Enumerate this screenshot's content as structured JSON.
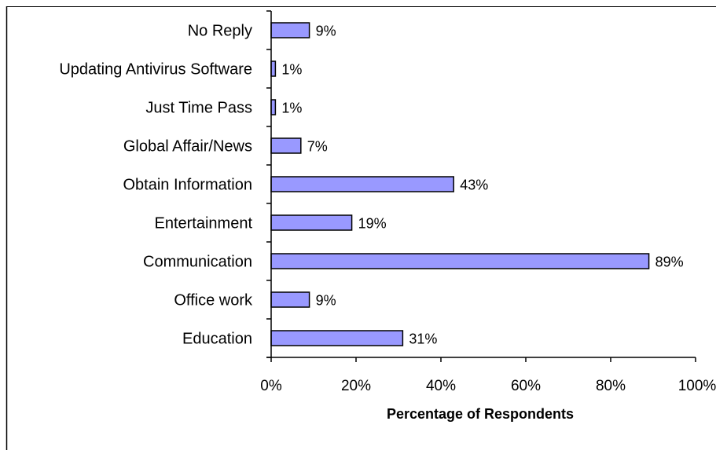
{
  "chart_data": {
    "type": "bar",
    "orientation": "horizontal",
    "title": "",
    "xlabel": "Percentage of Respondents",
    "ylabel": "",
    "categories": [
      "No Reply",
      "Updating Antivirus Software",
      "Just Time Pass",
      "Global Affair/News",
      "Obtain Information",
      "Entertainment",
      "Communication",
      "Office work",
      "Education"
    ],
    "values": [
      9,
      1,
      1,
      7,
      43,
      19,
      89,
      9,
      31
    ],
    "value_labels": [
      "9%",
      "1%",
      "1%",
      "7%",
      "43%",
      "19%",
      "89%",
      "9%",
      "31%"
    ],
    "xlim": [
      0,
      100
    ],
    "x_ticks": [
      0,
      20,
      40,
      60,
      80,
      100
    ],
    "x_tick_labels": [
      "0%",
      "20%",
      "40%",
      "60%",
      "80%",
      "100%"
    ],
    "grid": false,
    "legend": "none",
    "colors": {
      "bar_fill": "#9999ff",
      "bar_stroke": "#000000",
      "axis": "#000000",
      "background": "#ffffff"
    }
  }
}
